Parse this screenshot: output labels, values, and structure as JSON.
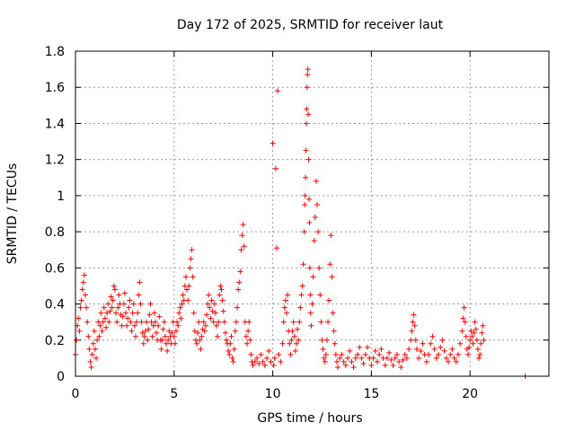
{
  "chart_data": {
    "type": "scatter",
    "title": "Day 172 of 2025, SRMTID for receiver laut",
    "xlabel": "GPS time / hours",
    "ylabel": "SRMTID / TECUs",
    "xlim": [
      0,
      24
    ],
    "ylim": [
      0,
      1.8
    ],
    "xticks": [
      0,
      5,
      10,
      15,
      20
    ],
    "xtick_labels": [
      "0",
      "5",
      "10",
      "15",
      "20"
    ],
    "yticks": [
      0,
      0.2,
      0.4,
      0.6,
      0.8,
      1,
      1.2,
      1.4,
      1.6,
      1.8
    ],
    "ytick_labels": [
      "0",
      "0.2",
      "0.4",
      "0.6",
      "0.8",
      "1",
      "1.2",
      "1.4",
      "1.6",
      "1.8"
    ],
    "grid": true,
    "marker": "+",
    "marker_color": "#ff0000",
    "points": [
      [
        0.0,
        0.12
      ],
      [
        0.05,
        0.2
      ],
      [
        0.1,
        0.28
      ],
      [
        0.15,
        0.32
      ],
      [
        0.2,
        0.25
      ],
      [
        0.25,
        0.38
      ],
      [
        0.3,
        0.42
      ],
      [
        0.35,
        0.48
      ],
      [
        0.4,
        0.52
      ],
      [
        0.45,
        0.56
      ],
      [
        0.5,
        0.45
      ],
      [
        0.55,
        0.38
      ],
      [
        0.6,
        0.3
      ],
      [
        0.65,
        0.22
      ],
      [
        0.7,
        0.15
      ],
      [
        0.75,
        0.08
      ],
      [
        0.8,
        0.05
      ],
      [
        0.85,
        0.12
      ],
      [
        0.9,
        0.18
      ],
      [
        0.95,
        0.25
      ],
      [
        1.0,
        0.15
      ],
      [
        1.05,
        0.1
      ],
      [
        1.1,
        0.2
      ],
      [
        1.15,
        0.3
      ],
      [
        1.2,
        0.22
      ],
      [
        1.25,
        0.28
      ],
      [
        1.3,
        0.35
      ],
      [
        1.35,
        0.25
      ],
      [
        1.4,
        0.3
      ],
      [
        1.45,
        0.38
      ],
      [
        1.5,
        0.32
      ],
      [
        1.55,
        0.27
      ],
      [
        1.6,
        0.35
      ],
      [
        1.65,
        0.4
      ],
      [
        1.7,
        0.3
      ],
      [
        1.75,
        0.36
      ],
      [
        1.8,
        0.44
      ],
      [
        1.85,
        0.38
      ],
      [
        1.9,
        0.42
      ],
      [
        1.95,
        0.5
      ],
      [
        2.0,
        0.48
      ],
      [
        2.05,
        0.35
      ],
      [
        2.1,
        0.3
      ],
      [
        2.15,
        0.38
      ],
      [
        2.2,
        0.45
      ],
      [
        2.25,
        0.4
      ],
      [
        2.3,
        0.34
      ],
      [
        2.35,
        0.28
      ],
      [
        2.4,
        0.33
      ],
      [
        2.45,
        0.4
      ],
      [
        2.5,
        0.46
      ],
      [
        2.55,
        0.35
      ],
      [
        2.6,
        0.28
      ],
      [
        2.65,
        0.32
      ],
      [
        2.7,
        0.38
      ],
      [
        2.75,
        0.42
      ],
      [
        2.8,
        0.3
      ],
      [
        2.85,
        0.25
      ],
      [
        2.9,
        0.35
      ],
      [
        2.95,
        0.4
      ],
      [
        3.0,
        0.28
      ],
      [
        3.05,
        0.22
      ],
      [
        3.1,
        0.3
      ],
      [
        3.15,
        0.35
      ],
      [
        3.2,
        0.45
      ],
      [
        3.25,
        0.52
      ],
      [
        3.3,
        0.4
      ],
      [
        3.35,
        0.3
      ],
      [
        3.4,
        0.24
      ],
      [
        3.45,
        0.18
      ],
      [
        3.5,
        0.22
      ],
      [
        3.55,
        0.25
      ],
      [
        3.6,
        0.3
      ],
      [
        3.65,
        0.2
      ],
      [
        3.7,
        0.26
      ],
      [
        3.75,
        0.34
      ],
      [
        3.8,
        0.4
      ],
      [
        3.85,
        0.3
      ],
      [
        3.9,
        0.22
      ],
      [
        3.95,
        0.28
      ],
      [
        4.0,
        0.35
      ],
      [
        4.05,
        0.3
      ],
      [
        4.1,
        0.24
      ],
      [
        4.15,
        0.2
      ],
      [
        4.2,
        0.28
      ],
      [
        4.25,
        0.33
      ],
      [
        4.3,
        0.2
      ],
      [
        4.35,
        0.15
      ],
      [
        4.4,
        0.2
      ],
      [
        4.45,
        0.26
      ],
      [
        4.5,
        0.3
      ],
      [
        4.55,
        0.22
      ],
      [
        4.6,
        0.18
      ],
      [
        4.65,
        0.14
      ],
      [
        4.7,
        0.2
      ],
      [
        4.75,
        0.25
      ],
      [
        4.8,
        0.22
      ],
      [
        4.85,
        0.18
      ],
      [
        4.9,
        0.24
      ],
      [
        4.95,
        0.3
      ],
      [
        5.0,
        0.22
      ],
      [
        5.05,
        0.18
      ],
      [
        5.1,
        0.25
      ],
      [
        5.15,
        0.3
      ],
      [
        5.2,
        0.28
      ],
      [
        5.25,
        0.35
      ],
      [
        5.3,
        0.38
      ],
      [
        5.35,
        0.32
      ],
      [
        5.4,
        0.4
      ],
      [
        5.45,
        0.45
      ],
      [
        5.5,
        0.42
      ],
      [
        5.55,
        0.5
      ],
      [
        5.6,
        0.55
      ],
      [
        5.65,
        0.48
      ],
      [
        5.7,
        0.42
      ],
      [
        5.75,
        0.5
      ],
      [
        5.8,
        0.6
      ],
      [
        5.85,
        0.65
      ],
      [
        5.9,
        0.7
      ],
      [
        5.95,
        0.55
      ],
      [
        6.0,
        0.35
      ],
      [
        6.05,
        0.25
      ],
      [
        6.1,
        0.2
      ],
      [
        6.15,
        0.18
      ],
      [
        6.2,
        0.24
      ],
      [
        6.25,
        0.3
      ],
      [
        6.3,
        0.2
      ],
      [
        6.35,
        0.15
      ],
      [
        6.4,
        0.22
      ],
      [
        6.45,
        0.26
      ],
      [
        6.5,
        0.3
      ],
      [
        6.55,
        0.25
      ],
      [
        6.6,
        0.28
      ],
      [
        6.65,
        0.34
      ],
      [
        6.7,
        0.4
      ],
      [
        6.75,
        0.45
      ],
      [
        6.8,
        0.38
      ],
      [
        6.85,
        0.32
      ],
      [
        6.9,
        0.42
      ],
      [
        6.95,
        0.36
      ],
      [
        7.0,
        0.3
      ],
      [
        7.05,
        0.4
      ],
      [
        7.1,
        0.35
      ],
      [
        7.15,
        0.28
      ],
      [
        7.2,
        0.22
      ],
      [
        7.25,
        0.3
      ],
      [
        7.3,
        0.45
      ],
      [
        7.35,
        0.5
      ],
      [
        7.4,
        0.48
      ],
      [
        7.45,
        0.42
      ],
      [
        7.5,
        0.36
      ],
      [
        7.55,
        0.3
      ],
      [
        7.6,
        0.24
      ],
      [
        7.65,
        0.2
      ],
      [
        7.7,
        0.18
      ],
      [
        7.75,
        0.14
      ],
      [
        7.8,
        0.12
      ],
      [
        7.85,
        0.18
      ],
      [
        7.9,
        0.22
      ],
      [
        7.95,
        0.1
      ],
      [
        8.0,
        0.08
      ],
      [
        8.05,
        0.15
      ],
      [
        8.1,
        0.25
      ],
      [
        8.15,
        0.3
      ],
      [
        8.2,
        0.38
      ],
      [
        8.25,
        0.48
      ],
      [
        8.3,
        0.52
      ],
      [
        8.35,
        0.58
      ],
      [
        8.4,
        0.7
      ],
      [
        8.45,
        0.78
      ],
      [
        8.5,
        0.84
      ],
      [
        8.55,
        0.72
      ],
      [
        8.6,
        0.3
      ],
      [
        8.65,
        0.22
      ],
      [
        8.7,
        0.18
      ],
      [
        8.75,
        0.25
      ],
      [
        8.8,
        0.3
      ],
      [
        8.85,
        0.2
      ],
      [
        8.9,
        0.12
      ],
      [
        8.95,
        0.08
      ],
      [
        9.0,
        0.06
      ],
      [
        9.1,
        0.08
      ],
      [
        9.2,
        0.1
      ],
      [
        9.3,
        0.07
      ],
      [
        9.4,
        0.12
      ],
      [
        9.5,
        0.08
      ],
      [
        9.6,
        0.06
      ],
      [
        9.7,
        0.1
      ],
      [
        9.8,
        0.14
      ],
      [
        9.9,
        0.08
      ],
      [
        10.0,
        1.29
      ],
      [
        10.05,
        0.06
      ],
      [
        10.1,
        0.1
      ],
      [
        10.15,
        1.15
      ],
      [
        10.2,
        0.71
      ],
      [
        10.25,
        1.58
      ],
      [
        10.3,
        0.12
      ],
      [
        10.4,
        0.08
      ],
      [
        10.5,
        0.18
      ],
      [
        10.55,
        0.3
      ],
      [
        10.6,
        0.38
      ],
      [
        10.65,
        0.42
      ],
      [
        10.7,
        0.35
      ],
      [
        10.75,
        0.45
      ],
      [
        10.8,
        0.25
      ],
      [
        10.85,
        0.18
      ],
      [
        10.9,
        0.12
      ],
      [
        10.95,
        0.2
      ],
      [
        11.0,
        0.25
      ],
      [
        11.05,
        0.3
      ],
      [
        11.1,
        0.22
      ],
      [
        11.15,
        0.14
      ],
      [
        11.2,
        0.18
      ],
      [
        11.25,
        0.26
      ],
      [
        11.3,
        0.2
      ],
      [
        11.35,
        0.3
      ],
      [
        11.4,
        0.38
      ],
      [
        11.45,
        0.45
      ],
      [
        11.5,
        0.5
      ],
      [
        11.55,
        0.62
      ],
      [
        11.6,
        0.8
      ],
      [
        11.62,
        0.95
      ],
      [
        11.64,
        1.0
      ],
      [
        11.66,
        1.1
      ],
      [
        11.68,
        1.25
      ],
      [
        11.7,
        1.4
      ],
      [
        11.72,
        1.48
      ],
      [
        11.74,
        1.6
      ],
      [
        11.76,
        1.67
      ],
      [
        11.78,
        1.7
      ],
      [
        11.8,
        1.45
      ],
      [
        11.82,
        1.2
      ],
      [
        11.84,
        0.98
      ],
      [
        11.86,
        0.85
      ],
      [
        11.88,
        0.6
      ],
      [
        11.9,
        0.45
      ],
      [
        11.92,
        0.35
      ],
      [
        11.95,
        0.28
      ],
      [
        12.0,
        0.4
      ],
      [
        12.05,
        0.55
      ],
      [
        12.1,
        0.75
      ],
      [
        12.15,
        0.88
      ],
      [
        12.2,
        1.08
      ],
      [
        12.25,
        0.95
      ],
      [
        12.3,
        0.8
      ],
      [
        12.35,
        0.6
      ],
      [
        12.4,
        0.45
      ],
      [
        12.45,
        0.3
      ],
      [
        12.5,
        0.2
      ],
      [
        12.55,
        0.15
      ],
      [
        12.6,
        0.1
      ],
      [
        12.65,
        0.08
      ],
      [
        12.7,
        0.12
      ],
      [
        12.75,
        0.2
      ],
      [
        12.8,
        0.3
      ],
      [
        12.85,
        0.42
      ],
      [
        12.9,
        0.62
      ],
      [
        12.95,
        0.78
      ],
      [
        13.0,
        0.55
      ],
      [
        13.05,
        0.35
      ],
      [
        13.1,
        0.25
      ],
      [
        13.15,
        0.18
      ],
      [
        13.2,
        0.12
      ],
      [
        13.25,
        0.08
      ],
      [
        13.3,
        0.05
      ],
      [
        13.4,
        0.1
      ],
      [
        13.5,
        0.12
      ],
      [
        13.6,
        0.08
      ],
      [
        13.7,
        0.06
      ],
      [
        13.8,
        0.1
      ],
      [
        13.9,
        0.14
      ],
      [
        14.0,
        0.08
      ],
      [
        14.1,
        0.05
      ],
      [
        14.2,
        0.1
      ],
      [
        14.3,
        0.12
      ],
      [
        14.4,
        0.16
      ],
      [
        14.5,
        0.1
      ],
      [
        14.6,
        0.07
      ],
      [
        14.7,
        0.12
      ],
      [
        14.8,
        0.16
      ],
      [
        14.9,
        0.1
      ],
      [
        15.0,
        0.06
      ],
      [
        15.1,
        0.1
      ],
      [
        15.2,
        0.14
      ],
      [
        15.3,
        0.08
      ],
      [
        15.4,
        0.12
      ],
      [
        15.5,
        0.15
      ],
      [
        15.6,
        0.1
      ],
      [
        15.7,
        0.06
      ],
      [
        15.8,
        0.1
      ],
      [
        15.9,
        0.13
      ],
      [
        16.0,
        0.09
      ],
      [
        16.1,
        0.06
      ],
      [
        16.2,
        0.1
      ],
      [
        16.3,
        0.12
      ],
      [
        16.4,
        0.08
      ],
      [
        16.5,
        0.05
      ],
      [
        16.6,
        0.09
      ],
      [
        16.7,
        0.12
      ],
      [
        16.8,
        0.1
      ],
      [
        16.9,
        0.15
      ],
      [
        17.0,
        0.2
      ],
      [
        17.05,
        0.25
      ],
      [
        17.1,
        0.3
      ],
      [
        17.15,
        0.34
      ],
      [
        17.2,
        0.28
      ],
      [
        17.25,
        0.2
      ],
      [
        17.3,
        0.15
      ],
      [
        17.4,
        0.1
      ],
      [
        17.5,
        0.14
      ],
      [
        17.6,
        0.18
      ],
      [
        17.7,
        0.12
      ],
      [
        17.8,
        0.08
      ],
      [
        17.9,
        0.12
      ],
      [
        18.0,
        0.18
      ],
      [
        18.1,
        0.22
      ],
      [
        18.2,
        0.15
      ],
      [
        18.3,
        0.1
      ],
      [
        18.4,
        0.12
      ],
      [
        18.5,
        0.16
      ],
      [
        18.6,
        0.2
      ],
      [
        18.7,
        0.14
      ],
      [
        18.8,
        0.1
      ],
      [
        18.9,
        0.08
      ],
      [
        19.0,
        0.12
      ],
      [
        19.1,
        0.15
      ],
      [
        19.2,
        0.1
      ],
      [
        19.3,
        0.08
      ],
      [
        19.4,
        0.12
      ],
      [
        19.5,
        0.18
      ],
      [
        19.6,
        0.25
      ],
      [
        19.65,
        0.32
      ],
      [
        19.7,
        0.38
      ],
      [
        19.75,
        0.3
      ],
      [
        19.8,
        0.22
      ],
      [
        19.85,
        0.15
      ],
      [
        19.9,
        0.12
      ],
      [
        19.95,
        0.16
      ],
      [
        20.0,
        0.2
      ],
      [
        20.05,
        0.25
      ],
      [
        20.1,
        0.22
      ],
      [
        20.15,
        0.18
      ],
      [
        20.2,
        0.24
      ],
      [
        20.25,
        0.3
      ],
      [
        20.3,
        0.26
      ],
      [
        20.35,
        0.2
      ],
      [
        20.4,
        0.15
      ],
      [
        20.45,
        0.1
      ],
      [
        20.5,
        0.12
      ],
      [
        20.55,
        0.18
      ],
      [
        20.6,
        0.24
      ],
      [
        20.65,
        0.28
      ],
      [
        20.7,
        0.2
      ],
      [
        22.8,
        0.0
      ]
    ]
  }
}
